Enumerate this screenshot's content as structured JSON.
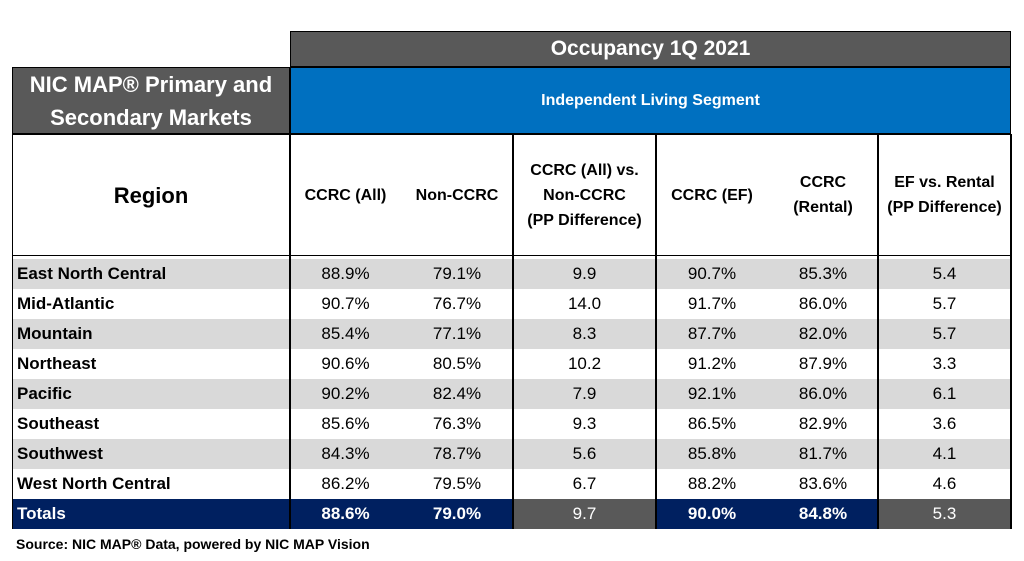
{
  "header": {
    "occupancy_title": "Occupancy 1Q 2021",
    "markets_title_line1": "NIC MAP® Primary and",
    "markets_title_line2": "Secondary Markets",
    "segment": "Independent Living Segment"
  },
  "columns": {
    "region": "Region",
    "ccrc_all": "CCRC (All)",
    "non_ccrc": "Non-CCRC",
    "diff_all": "CCRC (All) vs.\nNon-CCRC\n(PP Difference)",
    "ccrc_ef": "CCRC (EF)",
    "ccrc_rental": "CCRC\n(Rental)",
    "diff_ef": "EF  vs. Rental\n(PP Difference)"
  },
  "rows": [
    {
      "region": "East North Central",
      "ccrc_all": "88.9%",
      "non_ccrc": "79.1%",
      "diff_all": "9.9",
      "ccrc_ef": "90.7%",
      "ccrc_rental": "85.3%",
      "diff_ef": "5.4"
    },
    {
      "region": "Mid-Atlantic",
      "ccrc_all": "90.7%",
      "non_ccrc": "76.7%",
      "diff_all": "14.0",
      "ccrc_ef": "91.7%",
      "ccrc_rental": "86.0%",
      "diff_ef": "5.7"
    },
    {
      "region": "Mountain",
      "ccrc_all": "85.4%",
      "non_ccrc": "77.1%",
      "diff_all": "8.3",
      "ccrc_ef": "87.7%",
      "ccrc_rental": "82.0%",
      "diff_ef": "5.7"
    },
    {
      "region": "Northeast",
      "ccrc_all": "90.6%",
      "non_ccrc": "80.5%",
      "diff_all": "10.2",
      "ccrc_ef": "91.2%",
      "ccrc_rental": "87.9%",
      "diff_ef": "3.3"
    },
    {
      "region": "Pacific",
      "ccrc_all": "90.2%",
      "non_ccrc": "82.4%",
      "diff_all": "7.9",
      "ccrc_ef": "92.1%",
      "ccrc_rental": "86.0%",
      "diff_ef": "6.1"
    },
    {
      "region": "Southeast",
      "ccrc_all": "85.6%",
      "non_ccrc": "76.3%",
      "diff_all": "9.3",
      "ccrc_ef": "86.5%",
      "ccrc_rental": "82.9%",
      "diff_ef": "3.6"
    },
    {
      "region": "Southwest",
      "ccrc_all": "84.3%",
      "non_ccrc": "78.7%",
      "diff_all": "5.6",
      "ccrc_ef": "85.8%",
      "ccrc_rental": "81.7%",
      "diff_ef": "4.1"
    },
    {
      "region": "West North Central",
      "ccrc_all": "86.2%",
      "non_ccrc": "79.5%",
      "diff_all": "6.7",
      "ccrc_ef": "88.2%",
      "ccrc_rental": "83.6%",
      "diff_ef": "4.6"
    }
  ],
  "totals": {
    "label": "Totals",
    "ccrc_all": "88.6%",
    "non_ccrc": "79.0%",
    "diff_all": "9.7",
    "ccrc_ef": "90.0%",
    "ccrc_rental": "84.8%",
    "diff_ef": "5.3"
  },
  "source": "Source: NIC MAP® Data, powered by NIC MAP Vision",
  "colors": {
    "dark_grey": "#595959",
    "blue": "#0070c0",
    "navy": "#002060",
    "stripe": "#d9d9d9"
  }
}
